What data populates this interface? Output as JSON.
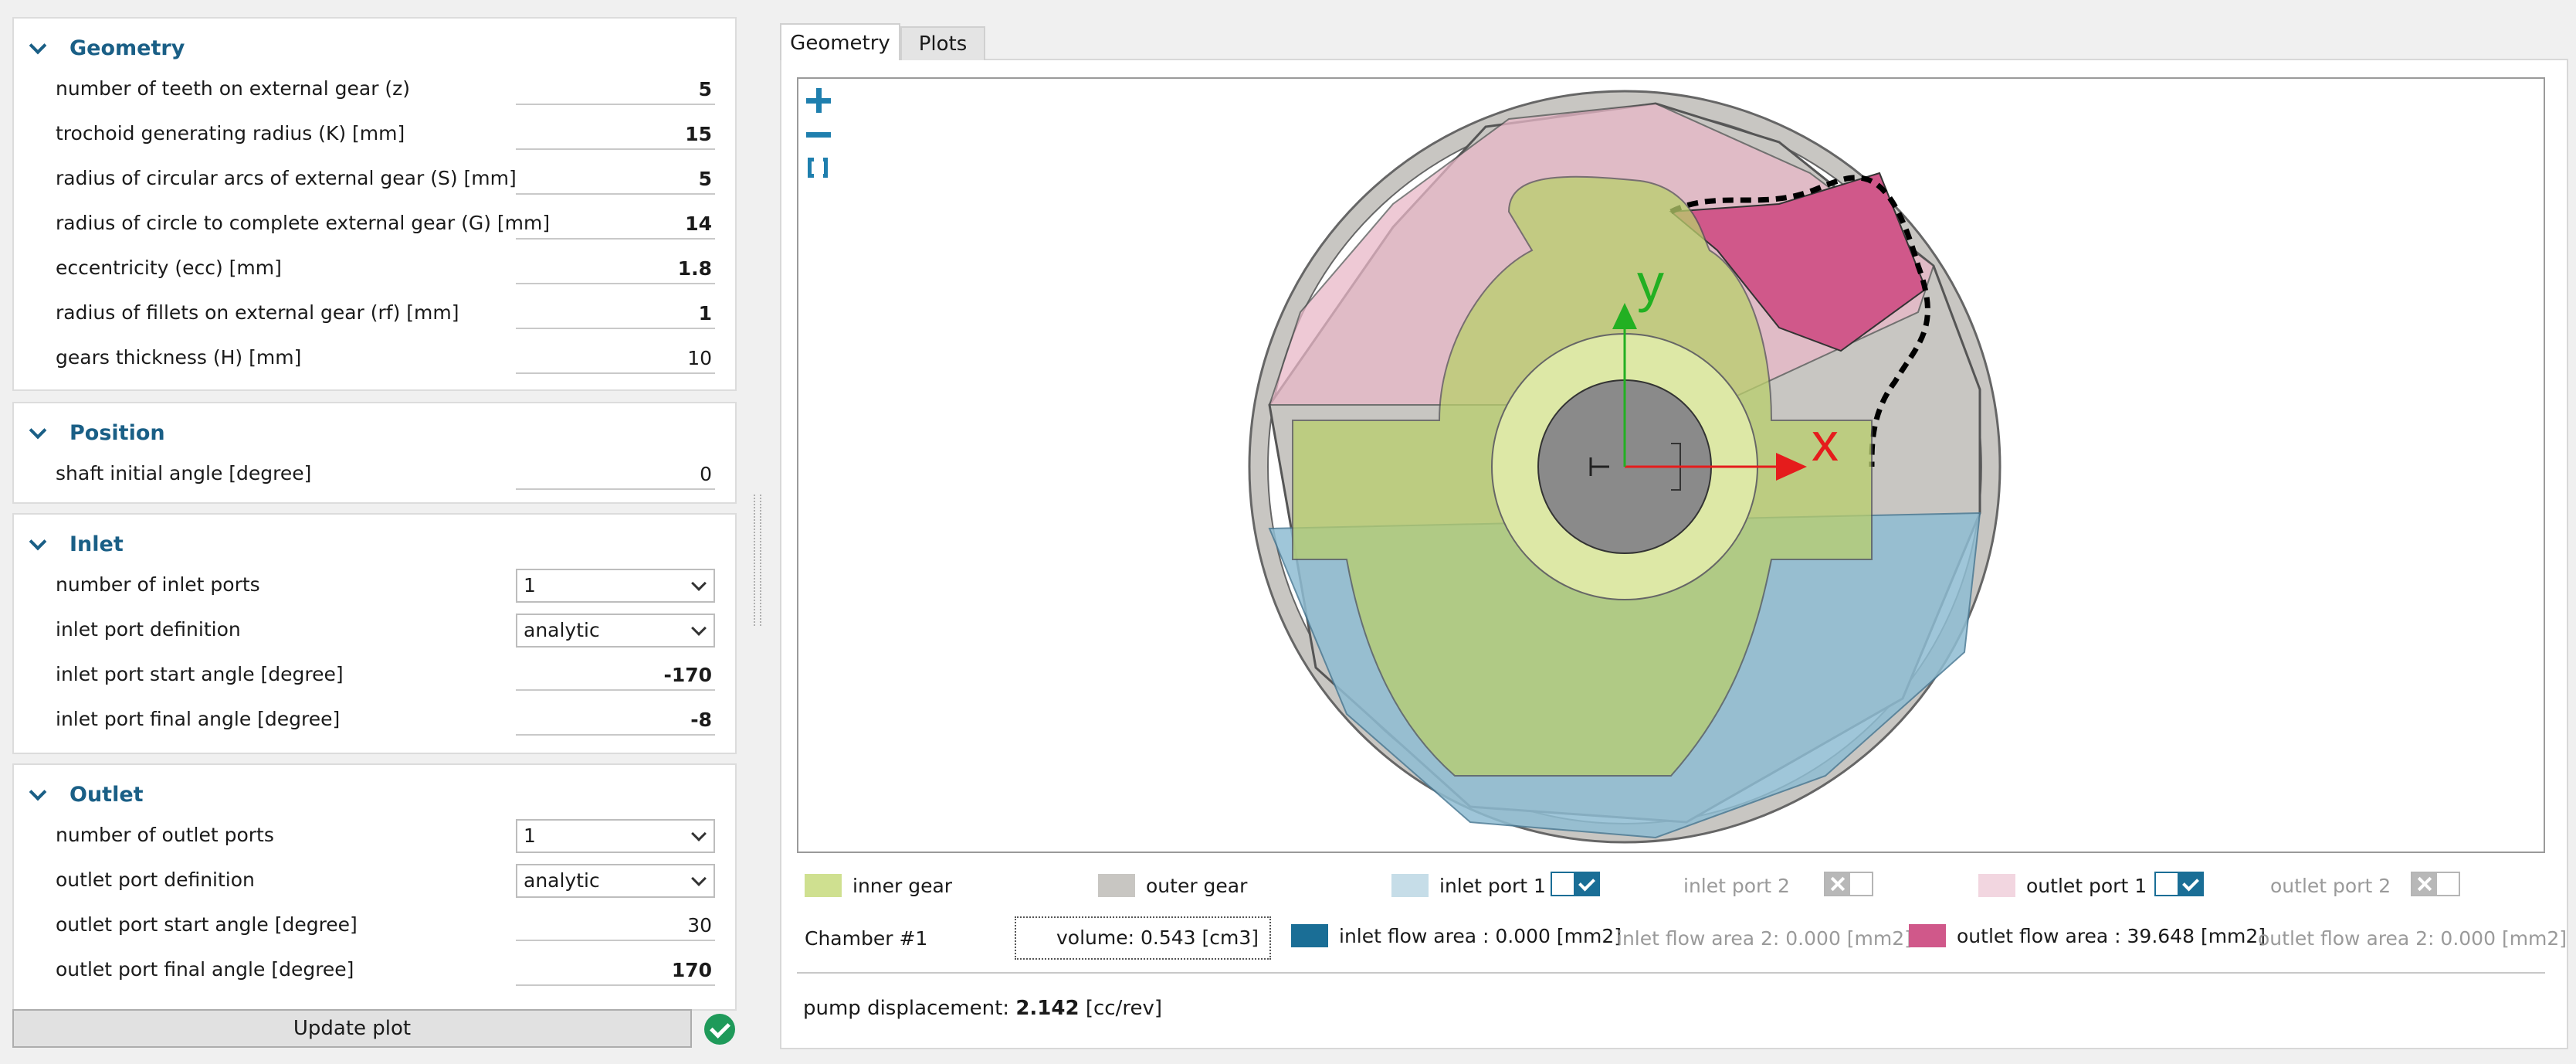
{
  "groups": {
    "geometry": {
      "title": "Geometry",
      "rows": [
        {
          "label": "number of teeth on external gear (z)",
          "value": "5",
          "bold": true
        },
        {
          "label": "trochoid generating radius (K) [mm]",
          "value": "15",
          "bold": true
        },
        {
          "label": "radius of circular arcs of external gear (S) [mm]",
          "value": "5",
          "bold": true
        },
        {
          "label": "radius of circle to complete external gear (G) [mm]",
          "value": "14",
          "bold": true
        },
        {
          "label": "eccentricity (ecc) [mm]",
          "value": "1.8",
          "bold": true
        },
        {
          "label": "radius of fillets on external gear (rf) [mm]",
          "value": "1",
          "bold": true
        },
        {
          "label": "gears thickness (H) [mm]",
          "value": "10",
          "bold": false
        }
      ]
    },
    "position": {
      "title": "Position",
      "rows": [
        {
          "label": "shaft initial angle [degree]",
          "value": "0",
          "bold": false
        }
      ]
    },
    "inlet": {
      "title": "Inlet",
      "rows": [
        {
          "label": "number of inlet ports",
          "value": "1",
          "type": "select"
        },
        {
          "label": "inlet port definition",
          "value": "analytic",
          "type": "select"
        },
        {
          "label": "inlet port start angle [degree]",
          "value": "-170",
          "bold": true
        },
        {
          "label": "inlet port final angle [degree]",
          "value": "-8",
          "bold": true
        }
      ]
    },
    "outlet": {
      "title": "Outlet",
      "rows": [
        {
          "label": "number of outlet ports",
          "value": "1",
          "type": "select"
        },
        {
          "label": "outlet port definition",
          "value": "analytic",
          "type": "select"
        },
        {
          "label": "outlet port start angle [degree]",
          "value": "30",
          "bold": false
        },
        {
          "label": "outlet port final angle [degree]",
          "value": "170",
          "bold": true
        }
      ]
    }
  },
  "update_button": "Update plot",
  "tabs": [
    "Geometry",
    "Plots"
  ],
  "plot": {
    "axis_x": "x",
    "axis_y": "y",
    "colors": {
      "inner_gear": "#cfe090",
      "outer_gear": "#c8c6c2",
      "inlet_port": "#8fbdd3",
      "outlet_port": "#e9b8c8",
      "outlet_flow": "#d0588a",
      "inlet_flow": "#1a6e96"
    }
  },
  "legend": {
    "inner_gear": "inner gear",
    "outer_gear": "outer gear",
    "inlet_port_1": "inlet port 1",
    "inlet_port_2": "inlet port 2",
    "outlet_port_1": "outlet port 1",
    "outlet_port_2": "outlet port 2"
  },
  "chamber": {
    "label": "Chamber #1",
    "volume": "volume: 0.543 [cm3]",
    "inlet_flow": "inlet flow area : 0.000 [mm2]",
    "inlet_flow_2": "inlet flow area 2: 0.000 [mm2]",
    "outlet_flow": "outlet flow area : 39.648 [mm2]",
    "outlet_flow_2": "outlet flow area 2: 0.000 [mm2]"
  },
  "pump": {
    "label": "pump displacement:",
    "value": "2.142",
    "unit": "[cc/rev]"
  }
}
